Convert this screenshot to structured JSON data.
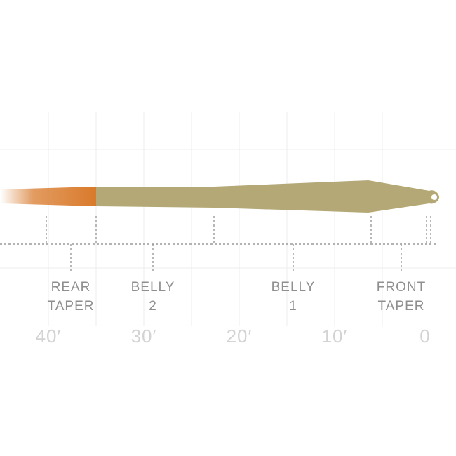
{
  "colors": {
    "background": "#ffffff",
    "grid": "#ececec",
    "rear_taper": "#d97a2b",
    "body": "#b3a876",
    "dotted": "#9a9a9a",
    "section_text": "#8f8f8f",
    "scale_text": "#d3d3d3"
  },
  "sections": [
    {
      "id": "rear-taper",
      "line1": "REAR",
      "line2": "TAPER"
    },
    {
      "id": "belly-2",
      "line1": "BELLY",
      "line2": "2"
    },
    {
      "id": "belly-1",
      "line1": "BELLY",
      "line2": "1"
    },
    {
      "id": "front-taper",
      "line1": "FRONT",
      "line2": "TAPER"
    }
  ],
  "scale": {
    "unit": "feet",
    "ticks": [
      {
        "value": 40,
        "label": "40′"
      },
      {
        "value": 30,
        "label": "30′"
      },
      {
        "value": 20,
        "label": "20′"
      },
      {
        "value": 10,
        "label": "10′"
      },
      {
        "value": 0,
        "label": "0"
      }
    ]
  }
}
